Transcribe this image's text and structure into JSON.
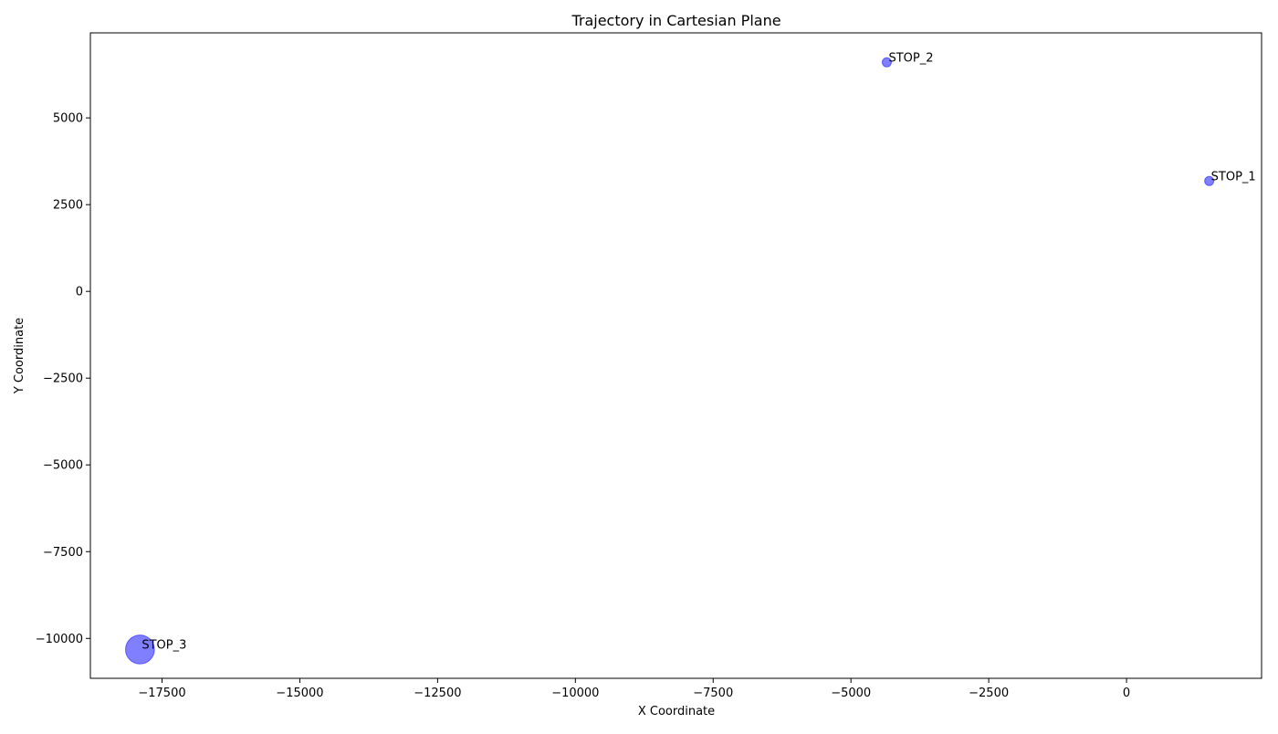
{
  "chart_data": {
    "type": "scatter",
    "title": "Trajectory in Cartesian Plane",
    "xlabel": "X Coordinate",
    "ylabel": "Y Coordinate",
    "xlim": [
      -18800,
      2450
    ],
    "ylim": [
      -11150,
      7450
    ],
    "x_ticks": [
      -17500,
      -15000,
      -12500,
      -10000,
      -7500,
      -5000,
      -2500,
      0
    ],
    "x_tick_labels": [
      "−17500",
      "−15000",
      "−12500",
      "−10000",
      "−7500",
      "−5000",
      "−2500",
      "0"
    ],
    "y_ticks": [
      -10000,
      -7500,
      -5000,
      -2500,
      0,
      2500,
      5000
    ],
    "y_tick_labels": [
      "−10000",
      "−7500",
      "−5000",
      "−2500",
      "0",
      "2500",
      "5000"
    ],
    "grid": false,
    "marker_color": "#0000ff",
    "marker_alpha": 0.5,
    "points": [
      {
        "label": "STOP_1",
        "x": 1500,
        "y": 3180,
        "size": 1
      },
      {
        "label": "STOP_2",
        "x": -4350,
        "y": 6600,
        "size": 1
      },
      {
        "label": "STOP_3",
        "x": -17900,
        "y": -10320,
        "size": 10
      }
    ]
  }
}
